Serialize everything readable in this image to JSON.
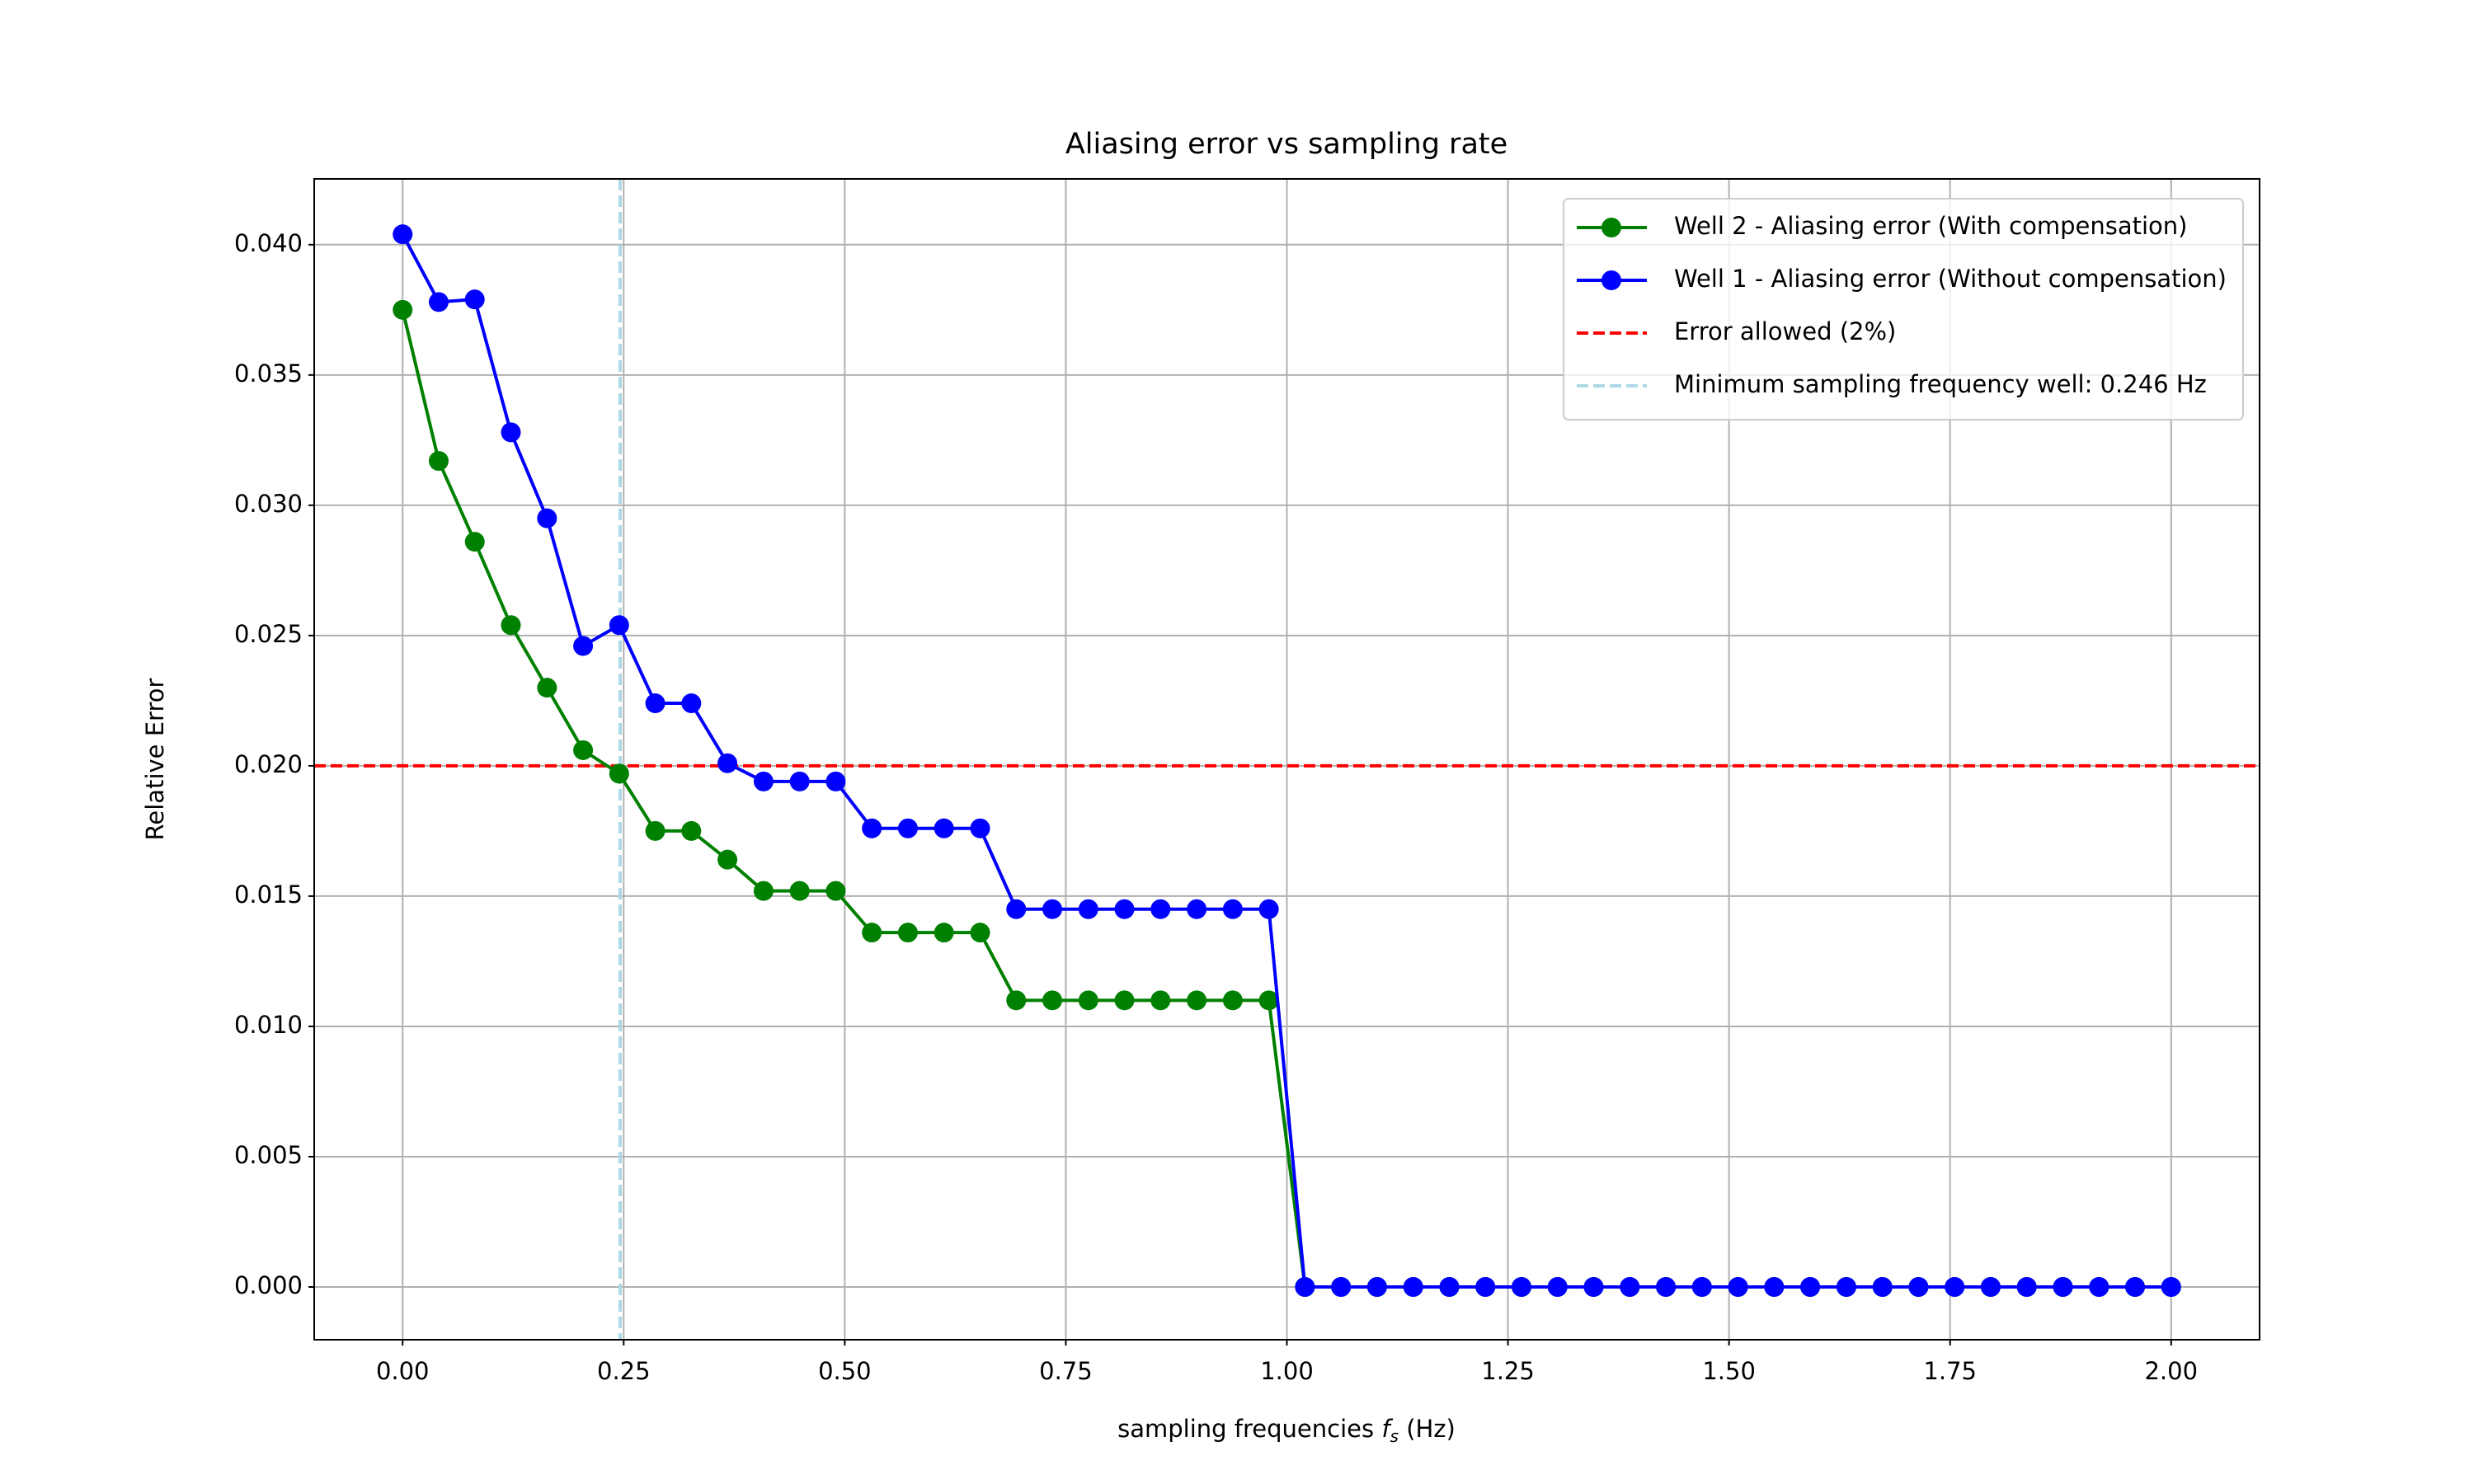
{
  "chart_data": {
    "type": "line",
    "title": "Aliasing error vs sampling rate",
    "xlabel": {
      "before": "sampling frequencies",
      "symbol": "f",
      "subscript": "s",
      "after": "(Hz)"
    },
    "ylabel": "Relative Error",
    "x": [
      0,
      0.0408,
      0.0816,
      0.1224,
      0.1633,
      0.2041,
      0.2449,
      0.2857,
      0.3265,
      0.3673,
      0.4082,
      0.449,
      0.4898,
      0.5306,
      0.5714,
      0.6122,
      0.6531,
      0.6939,
      0.7347,
      0.7755,
      0.8163,
      0.8571,
      0.898,
      0.9388,
      0.9796,
      1.0204,
      1.0612,
      1.102,
      1.1429,
      1.1837,
      1.2245,
      1.2653,
      1.3061,
      1.3469,
      1.3878,
      1.4286,
      1.4694,
      1.5102,
      1.551,
      1.5918,
      1.6327,
      1.6735,
      1.7143,
      1.7551,
      1.7959,
      1.8367,
      1.8776,
      1.9184,
      1.9592,
      2
    ],
    "series": [
      {
        "name": "Well 2 - Aliasing error (With compensation)",
        "color": "green",
        "values": [
          0.0375,
          0.0317,
          0.0286,
          0.0254,
          0.023,
          0.0206,
          0.0197,
          0.0175,
          0.0175,
          0.0164,
          0.0152,
          0.0152,
          0.0152,
          0.0136,
          0.0136,
          0.0136,
          0.0136,
          0.011,
          0.011,
          0.011,
          0.011,
          0.011,
          0.011,
          0.011,
          0.011,
          0,
          0,
          0,
          0,
          0,
          0,
          0,
          0,
          0,
          0,
          0,
          0,
          0,
          0,
          0,
          0,
          0,
          0,
          0,
          0,
          0,
          0,
          0,
          0,
          0
        ]
      },
      {
        "name": "Well 1 - Aliasing error (Without compensation)",
        "color": "blue",
        "values": [
          0.0404,
          0.0378,
          0.0379,
          0.0328,
          0.0295,
          0.0246,
          0.0254,
          0.0224,
          0.0224,
          0.0201,
          0.0194,
          0.0194,
          0.0194,
          0.0176,
          0.0176,
          0.0176,
          0.0176,
          0.0145,
          0.0145,
          0.0145,
          0.0145,
          0.0145,
          0.0145,
          0.0145,
          0.0145,
          0,
          0,
          0,
          0,
          0,
          0,
          0,
          0,
          0,
          0,
          0,
          0,
          0,
          0,
          0,
          0,
          0,
          0,
          0,
          0,
          0,
          0,
          0,
          0,
          0
        ]
      }
    ],
    "hlines": [
      {
        "name": "Error allowed (2%)",
        "value": 0.02,
        "color": "red"
      }
    ],
    "vlines": [
      {
        "name": "Minimum sampling frequency well: 0.246 Hz",
        "value": 0.246,
        "color": "lightblue"
      }
    ],
    "xlim": [
      -0.1,
      2.1
    ],
    "ylim": [
      -0.002025,
      0.042525
    ],
    "xticks": [
      {
        "value": 0,
        "label": "0.00"
      },
      {
        "value": 0.25,
        "label": "0.25"
      },
      {
        "value": 0.5,
        "label": "0.50"
      },
      {
        "value": 0.75,
        "label": "0.75"
      },
      {
        "value": 1,
        "label": "1.00"
      },
      {
        "value": 1.25,
        "label": "1.25"
      },
      {
        "value": 1.5,
        "label": "1.50"
      },
      {
        "value": 1.75,
        "label": "1.75"
      },
      {
        "value": 2,
        "label": "2.00"
      }
    ],
    "yticks": [
      {
        "value": 0,
        "label": "0.000"
      },
      {
        "value": 0.005,
        "label": "0.005"
      },
      {
        "value": 0.01,
        "label": "0.010"
      },
      {
        "value": 0.015,
        "label": "0.015"
      },
      {
        "value": 0.02,
        "label": "0.020"
      },
      {
        "value": 0.025,
        "label": "0.025"
      },
      {
        "value": 0.03,
        "label": "0.030"
      },
      {
        "value": 0.035,
        "label": "0.035"
      },
      {
        "value": 0.04,
        "label": "0.040"
      }
    ],
    "grid": true,
    "legend": "upper right"
  }
}
